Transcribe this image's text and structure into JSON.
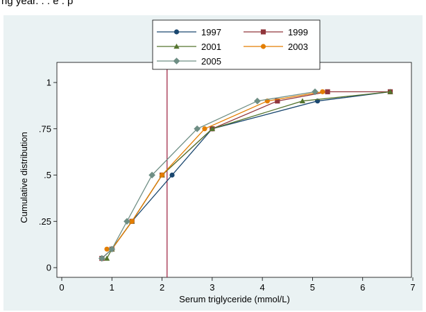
{
  "page": {
    "top_caption": "ng year. . . e . p"
  },
  "chart_data": {
    "type": "line",
    "xlabel": "Serum triglyceride (mmol/L)",
    "ylabel": "Cumulative distribution",
    "xlim": [
      0,
      7
    ],
    "ylim": [
      0,
      1
    ],
    "xticks": [
      {
        "value": 0,
        "label": "0"
      },
      {
        "value": 1,
        "label": "1"
      },
      {
        "value": 2,
        "label": "2"
      },
      {
        "value": 3,
        "label": "3"
      },
      {
        "value": 4,
        "label": "4"
      },
      {
        "value": 5,
        "label": "5"
      },
      {
        "value": 6,
        "label": "6"
      },
      {
        "value": 7,
        "label": "7"
      }
    ],
    "yticks": [
      {
        "value": 0,
        "label": "0"
      },
      {
        "value": 0.25,
        "label": ".25"
      },
      {
        "value": 0.5,
        "label": ".5"
      },
      {
        "value": 0.75,
        "label": ".75"
      },
      {
        "value": 1,
        "label": "1"
      }
    ],
    "grid": false,
    "legend_position": "top-center",
    "reference_line": {
      "x": 2.1,
      "color": "#99193a"
    },
    "series": [
      {
        "name": "1997",
        "color": "#1a476f",
        "marker": "circle",
        "x": [
          0.8,
          1.0,
          1.4,
          2.2,
          3.0,
          5.1,
          6.55
        ],
        "y": [
          0.05,
          0.1,
          0.25,
          0.5,
          0.75,
          0.9,
          0.95
        ]
      },
      {
        "name": "1999",
        "color": "#90353b",
        "marker": "square",
        "x": [
          0.8,
          1.0,
          1.4,
          2.0,
          3.0,
          4.3,
          5.3,
          6.55
        ],
        "y": [
          0.05,
          0.1,
          0.25,
          0.5,
          0.75,
          0.9,
          0.95,
          0.95
        ]
      },
      {
        "name": "2001",
        "color": "#55752f",
        "marker": "triangle",
        "x": [
          0.9,
          1.0,
          1.4,
          2.0,
          3.0,
          4.8,
          6.55
        ],
        "y": [
          0.05,
          0.1,
          0.25,
          0.5,
          0.75,
          0.9,
          0.95
        ]
      },
      {
        "name": "2003",
        "color": "#e37e00",
        "marker": "circle",
        "x": [
          0.9,
          1.0,
          1.4,
          2.0,
          2.85,
          4.1,
          5.2
        ],
        "y": [
          0.1,
          0.1,
          0.25,
          0.5,
          0.75,
          0.9,
          0.95
        ]
      },
      {
        "name": "2005",
        "color": "#6e8e84",
        "marker": "diamond",
        "x": [
          0.8,
          1.0,
          1.3,
          1.8,
          2.7,
          3.9,
          5.05
        ],
        "y": [
          0.05,
          0.1,
          0.25,
          0.5,
          0.75,
          0.9,
          0.95
        ]
      }
    ]
  }
}
